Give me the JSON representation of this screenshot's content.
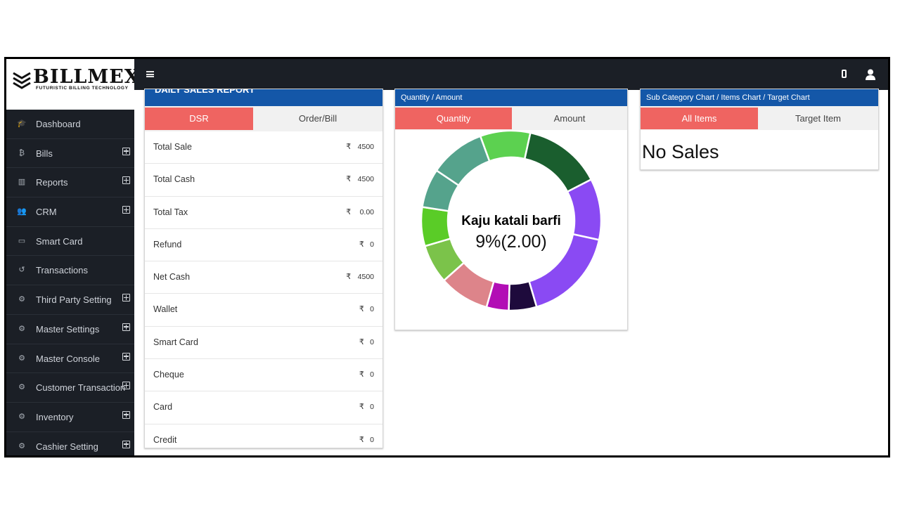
{
  "brand": {
    "name": "BILLMEX",
    "tagline": "FUTURISTIC BILLING TECHNOLOGY"
  },
  "sidebar": {
    "items": [
      {
        "label": "Dashboard",
        "icon": "graduation-cap-icon",
        "expandable": false
      },
      {
        "label": "Bills",
        "icon": "bitcoin-icon",
        "expandable": true
      },
      {
        "label": "Reports",
        "icon": "bar-chart-icon",
        "expandable": true
      },
      {
        "label": "CRM",
        "icon": "users-icon",
        "expandable": true
      },
      {
        "label": "Smart Card",
        "icon": "credit-card-icon",
        "expandable": false
      },
      {
        "label": "Transactions",
        "icon": "history-icon",
        "expandable": false
      },
      {
        "label": "Third Party Setting",
        "icon": "cogs-icon",
        "expandable": true
      },
      {
        "label": "Master Settings",
        "icon": "cogs-icon",
        "expandable": true
      },
      {
        "label": "Master Console",
        "icon": "gear-icon",
        "expandable": true
      },
      {
        "label": "Customer Transaction",
        "icon": "cogs-icon",
        "expandable": true
      },
      {
        "label": "Inventory",
        "icon": "cogs-icon",
        "expandable": true
      },
      {
        "label": "Cashier Setting",
        "icon": "cogs-icon",
        "expandable": true
      }
    ]
  },
  "topbar": {
    "icons": [
      "menu-toggle-icon",
      "mobile-icon",
      "user-icon"
    ]
  },
  "dsr": {
    "title": "DAILY SALES REPORT",
    "tabs": [
      "DSR",
      "Order/Bill"
    ],
    "active_tab": 0,
    "currency": "₹",
    "rows": [
      {
        "label": "Total Sale",
        "value": "4500"
      },
      {
        "label": "Total Cash",
        "value": "4500"
      },
      {
        "label": "Total Tax",
        "value": "0.00"
      },
      {
        "label": "Refund",
        "value": "0"
      },
      {
        "label": "Net Cash",
        "value": "4500"
      },
      {
        "label": "Wallet",
        "value": "0"
      },
      {
        "label": "Smart Card",
        "value": "0"
      },
      {
        "label": "Cheque",
        "value": "0"
      },
      {
        "label": "Card",
        "value": "0"
      },
      {
        "label": "Credit",
        "value": "0"
      }
    ]
  },
  "quantity": {
    "title": "Quantity / Amount",
    "tabs": [
      "Quantity",
      "Amount"
    ],
    "active_tab": 0,
    "center_title": "Kaju katali barfi",
    "center_value": "9%(2.00)"
  },
  "subcategory": {
    "title": "Sub Category Chart / Items Chart / Target Chart",
    "tabs": [
      "All Items",
      "Target Item"
    ],
    "active_tab": 0,
    "message": "No Sales"
  },
  "colors": {
    "sidebar": "#1b1f26",
    "panel_header": "#1457a8",
    "active_tab": "#ef6461"
  },
  "chart_data": {
    "type": "pie",
    "values": [
      9,
      14,
      11,
      17,
      5,
      4,
      9,
      7,
      7,
      7,
      10
    ],
    "colors": [
      "#5cd150",
      "#1a5e2e",
      "#8a4af3",
      "#8a4af3",
      "#1e0a3c",
      "#b20eb5",
      "#dd848a",
      "#7bc34a",
      "#5acc27",
      "#55a38c",
      "#55a38c"
    ],
    "highlight": "Kaju katali barfi",
    "highlight_percent": 9
  }
}
